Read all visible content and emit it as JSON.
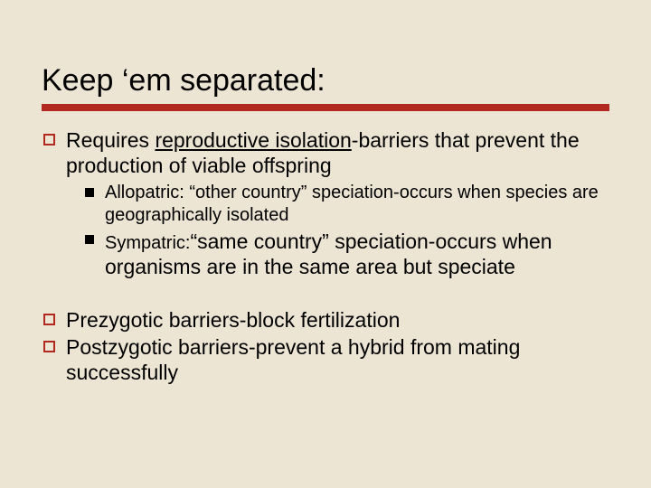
{
  "slide": {
    "title": "Keep ‘em separated:",
    "rule_color": "#b1291e",
    "background_color": "#ece5d4",
    "title_fontsize": 34,
    "body_fontsize_l1": 23,
    "body_fontsize_l2": 20,
    "bullets": {
      "b1_pre": "Requires ",
      "b1_underline": "reproductive isolation",
      "b1_post": "-barriers that prevent the production of viable offspring",
      "b1a": "Allopatric: “other country” speciation-occurs when species are geographically isolated",
      "b1b_pre": "Sympatric:",
      "b1b_post": "“same country” speciation-occurs when organisms are in the same area but speciate",
      "b2": "Prezygotic barriers-block fertilization",
      "b3": "Postzygotic barriers-prevent a hybrid from mating successfully"
    }
  }
}
